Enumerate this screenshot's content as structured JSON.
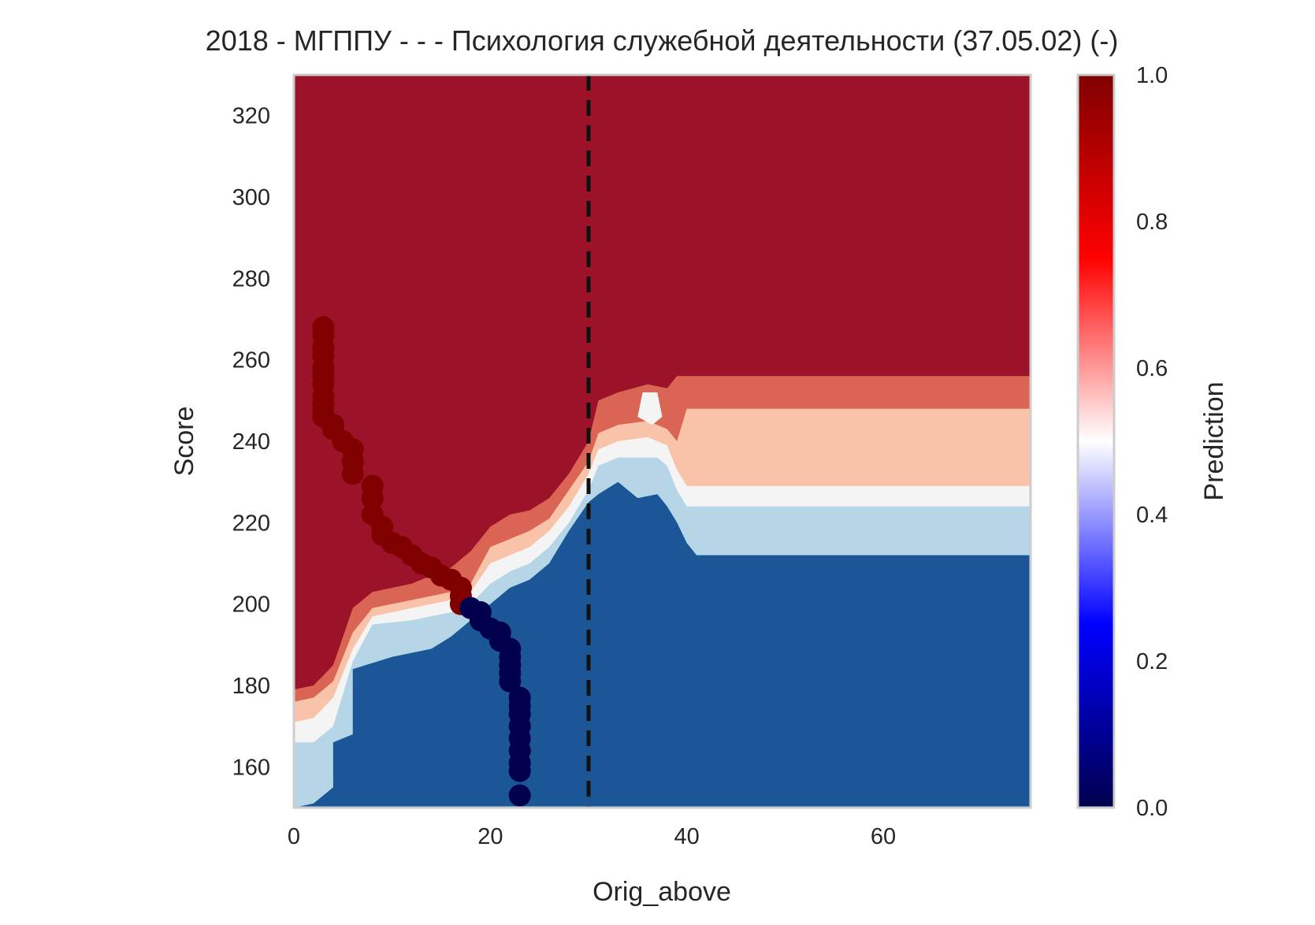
{
  "chart_data": {
    "type": "heatmap",
    "title": "2018 - МГППУ - - - Психология служебной деятельности (37.05.02) (-)",
    "xlabel": "Orig_above",
    "ylabel": "Score",
    "xlim": [
      0,
      75
    ],
    "ylim": [
      150,
      330
    ],
    "xticks": [
      0,
      20,
      40,
      60
    ],
    "yticks": [
      160,
      180,
      200,
      220,
      240,
      260,
      280,
      300,
      320
    ],
    "colorbar": {
      "label": "Prediction",
      "range": [
        0,
        1
      ],
      "ticks": [
        "0.0",
        "0.2",
        "0.4",
        "0.6",
        "0.8",
        "1.0"
      ],
      "colormap": "seismic"
    },
    "threshold_line": {
      "x": 30,
      "style": "dashed",
      "color": "#111111"
    },
    "contour_levels": [
      {
        "level": "0.0-0.2",
        "color": "#1b5797"
      },
      {
        "level": "0.2-0.3",
        "color": "#4a97c5"
      },
      {
        "level": "0.3-0.4",
        "color": "#b6d6e7"
      },
      {
        "level": "0.4-0.5",
        "color": "#f4f4f4"
      },
      {
        "level": "0.5-0.6",
        "color": "#f8c3a9"
      },
      {
        "level": "0.6-0.8",
        "color": "#db6555"
      },
      {
        "level": "0.8-1.0",
        "color": "#9c1228"
      }
    ],
    "boundaries": [
      {
        "name": "b1",
        "points": [
          [
            0,
            150
          ],
          [
            2,
            151
          ],
          [
            4,
            155
          ],
          [
            4,
            166
          ],
          [
            6,
            168
          ],
          [
            6,
            184
          ],
          [
            10,
            187
          ],
          [
            14,
            189
          ],
          [
            16,
            192
          ],
          [
            18,
            196
          ],
          [
            20,
            200
          ],
          [
            22,
            204
          ],
          [
            24,
            206
          ],
          [
            26,
            210
          ],
          [
            28,
            218
          ],
          [
            30,
            225
          ],
          [
            31,
            227
          ],
          [
            33,
            230
          ],
          [
            34,
            228
          ],
          [
            35,
            226
          ],
          [
            37,
            227
          ],
          [
            38,
            224
          ],
          [
            39,
            220
          ],
          [
            40,
            215
          ],
          [
            41,
            212
          ],
          [
            43,
            212
          ],
          [
            50,
            212
          ],
          [
            60,
            212
          ],
          [
            75,
            212
          ]
        ]
      },
      {
        "name": "b2",
        "points": [
          [
            0,
            166
          ],
          [
            2,
            166
          ],
          [
            4,
            170
          ],
          [
            6,
            186
          ],
          [
            8,
            195
          ],
          [
            12,
            196
          ],
          [
            16,
            198
          ],
          [
            18,
            200
          ],
          [
            20,
            205
          ],
          [
            22,
            208
          ],
          [
            24,
            210
          ],
          [
            26,
            214
          ],
          [
            28,
            220
          ],
          [
            30,
            228
          ],
          [
            31,
            234
          ],
          [
            33,
            236
          ],
          [
            35,
            236
          ],
          [
            37,
            236
          ],
          [
            38,
            234
          ],
          [
            39,
            228
          ],
          [
            40,
            224
          ],
          [
            50,
            224
          ],
          [
            60,
            224
          ],
          [
            75,
            224
          ]
        ]
      },
      {
        "name": "b3",
        "points": [
          [
            0,
            171
          ],
          [
            2,
            172
          ],
          [
            4,
            177
          ],
          [
            6,
            189
          ],
          [
            8,
            197
          ],
          [
            12,
            199
          ],
          [
            16,
            201
          ],
          [
            18,
            203
          ],
          [
            20,
            210
          ],
          [
            22,
            212
          ],
          [
            24,
            214
          ],
          [
            26,
            218
          ],
          [
            28,
            224
          ],
          [
            30,
            232
          ],
          [
            31,
            238
          ],
          [
            33,
            240
          ],
          [
            36,
            241
          ],
          [
            38,
            239
          ],
          [
            39,
            233
          ],
          [
            40,
            229
          ],
          [
            50,
            229
          ],
          [
            60,
            229
          ],
          [
            75,
            229
          ]
        ]
      },
      {
        "name": "b4",
        "points": [
          [
            0,
            176
          ],
          [
            2,
            177
          ],
          [
            4,
            181
          ],
          [
            6,
            193
          ],
          [
            8,
            199
          ],
          [
            12,
            201
          ],
          [
            16,
            203
          ],
          [
            18,
            205
          ],
          [
            20,
            214
          ],
          [
            22,
            216
          ],
          [
            24,
            218
          ],
          [
            26,
            221
          ],
          [
            28,
            228
          ],
          [
            30,
            235
          ],
          [
            31,
            242
          ],
          [
            33,
            244
          ],
          [
            36,
            245
          ],
          [
            38,
            243
          ],
          [
            39,
            240
          ],
          [
            40,
            248
          ],
          [
            50,
            248
          ],
          [
            60,
            248
          ],
          [
            75,
            248
          ]
        ]
      },
      {
        "name": "b5",
        "points": [
          [
            0,
            179
          ],
          [
            2,
            180
          ],
          [
            4,
            185
          ],
          [
            6,
            199
          ],
          [
            8,
            203
          ],
          [
            12,
            205
          ],
          [
            16,
            209
          ],
          [
            18,
            213
          ],
          [
            20,
            219
          ],
          [
            22,
            222
          ],
          [
            24,
            223
          ],
          [
            26,
            226
          ],
          [
            28,
            232
          ],
          [
            30,
            240
          ],
          [
            31,
            250
          ],
          [
            33,
            252
          ],
          [
            36,
            254
          ],
          [
            38,
            253
          ],
          [
            39,
            256
          ],
          [
            50,
            256
          ],
          [
            60,
            256
          ],
          [
            75,
            256
          ]
        ]
      },
      {
        "name": "b6",
        "points": [
          [
            0,
            190
          ],
          [
            2,
            191
          ],
          [
            4,
            196
          ],
          [
            6,
            213
          ],
          [
            8,
            217
          ],
          [
            12,
            221
          ],
          [
            16,
            222
          ],
          [
            18,
            226
          ],
          [
            20,
            228
          ],
          [
            24,
            229
          ],
          [
            26,
            232
          ],
          [
            28,
            236
          ],
          [
            30,
            258
          ],
          [
            31,
            265
          ],
          [
            33,
            266
          ],
          [
            36,
            268
          ],
          [
            38,
            267
          ],
          [
            39,
            263
          ],
          [
            40,
            264
          ],
          [
            50,
            266
          ],
          [
            60,
            266
          ],
          [
            75,
            267
          ]
        ]
      }
    ],
    "islands": [
      {
        "name": "red-island-1",
        "level": "0.8-1.0",
        "points": [
          [
            31.8,
            268
          ],
          [
            33,
            272
          ],
          [
            34,
            270
          ],
          [
            35,
            269
          ],
          [
            36,
            270
          ],
          [
            37,
            270
          ],
          [
            38.2,
            268
          ],
          [
            38,
            262
          ],
          [
            36,
            263
          ],
          [
            35,
            260
          ],
          [
            34,
            263
          ],
          [
            32,
            262
          ]
        ]
      },
      {
        "name": "red-island-2",
        "level": "0.8-1.0",
        "points": [
          [
            33.8,
            276
          ],
          [
            35,
            279
          ],
          [
            36,
            281
          ],
          [
            37,
            281
          ],
          [
            38,
            278
          ],
          [
            37,
            274
          ],
          [
            36,
            274
          ],
          [
            35,
            274
          ],
          [
            34,
            274
          ]
        ]
      },
      {
        "name": "white-island-1",
        "level": "0.4-0.5",
        "points": [
          [
            35,
            246
          ],
          [
            35.5,
            252
          ],
          [
            37,
            252
          ],
          [
            37.5,
            246
          ],
          [
            36.5,
            244
          ]
        ]
      }
    ],
    "series": [
      {
        "name": "",
        "color_class": "high",
        "marker_color": "#800000",
        "points": [
          [
            3,
            268
          ],
          [
            3,
            266
          ],
          [
            3,
            263
          ],
          [
            3,
            261
          ],
          [
            3,
            258
          ],
          [
            3,
            256
          ],
          [
            3,
            254
          ],
          [
            3,
            251
          ],
          [
            3,
            249
          ],
          [
            3,
            247
          ],
          [
            3,
            246
          ],
          [
            4,
            244
          ],
          [
            4,
            243
          ],
          [
            5,
            240
          ],
          [
            6,
            238
          ],
          [
            6,
            235
          ],
          [
            6,
            232
          ],
          [
            8,
            229
          ],
          [
            8,
            226
          ],
          [
            8,
            222
          ],
          [
            9,
            219
          ],
          [
            9,
            217
          ],
          [
            10,
            215
          ],
          [
            11,
            214
          ],
          [
            12,
            212
          ],
          [
            13,
            210
          ],
          [
            14,
            209
          ],
          [
            15,
            207
          ],
          [
            16,
            206
          ],
          [
            17,
            204
          ],
          [
            17,
            202
          ],
          [
            17,
            200
          ]
        ]
      },
      {
        "name": "",
        "color_class": "low",
        "marker_color": "#00004d",
        "points": [
          [
            18,
            199
          ],
          [
            19,
            198
          ],
          [
            19,
            196
          ],
          [
            20,
            194
          ],
          [
            21,
            193
          ],
          [
            21,
            191
          ],
          [
            22,
            189
          ],
          [
            22,
            187
          ],
          [
            22,
            185
          ],
          [
            22,
            183
          ],
          [
            22,
            181
          ],
          [
            23,
            177
          ],
          [
            23,
            175
          ],
          [
            23,
            173
          ],
          [
            23,
            170
          ],
          [
            23,
            167
          ],
          [
            23,
            164
          ],
          [
            23,
            161
          ],
          [
            23,
            159
          ],
          [
            23,
            153
          ]
        ]
      }
    ]
  }
}
